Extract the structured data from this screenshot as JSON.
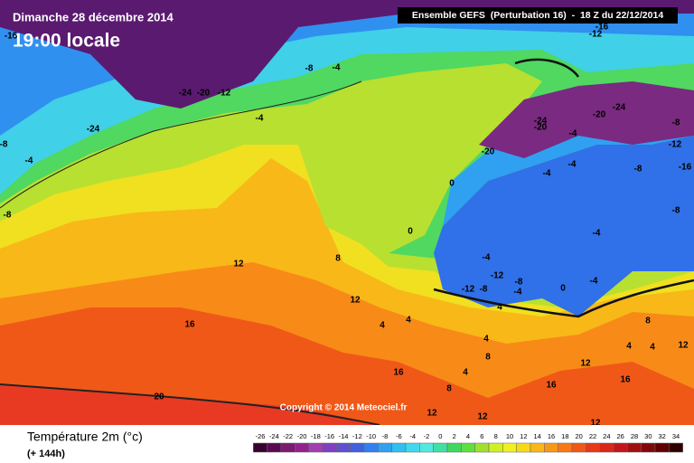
{
  "header": {
    "date": "Dimanche 28 décembre 2014",
    "time": "19:00 locale",
    "run": "Ensemble GEFS  (Perturbation 16)  -  18 Z du 22/12/2014",
    "copyright": "Copyright © 2014 Meteociel.fr"
  },
  "legend": {
    "title": "Température 2m (°c)",
    "lead": "(+ 144h)",
    "ticks": [
      -26,
      -24,
      -22,
      -20,
      -18,
      -16,
      -14,
      -12,
      -10,
      -8,
      -6,
      -4,
      -2,
      0,
      2,
      4,
      6,
      8,
      10,
      12,
      14,
      16,
      18,
      20,
      22,
      24,
      26,
      28,
      30,
      32,
      34
    ],
    "colors": [
      "#3a0030",
      "#5a0a50",
      "#7a1a70",
      "#952090",
      "#a040b0",
      "#8040c0",
      "#6050d0",
      "#4060e0",
      "#3080f0",
      "#30a0f0",
      "#30c0f0",
      "#40d8f0",
      "#50e8e0",
      "#40e0a0",
      "#40d860",
      "#60e040",
      "#a0e030",
      "#d0f020",
      "#f0f020",
      "#f8d818",
      "#f8b818",
      "#f89818",
      "#f87818",
      "#f05818",
      "#e83818",
      "#d82818",
      "#c01818",
      "#a01010",
      "#800808",
      "#600000",
      "#300000"
    ]
  },
  "contour_labels": [
    -16,
    -12,
    -16,
    -8,
    -4,
    -24,
    -20,
    -12,
    -24,
    -8,
    -4,
    -4,
    -24,
    -20,
    -24,
    -20,
    -4,
    -8,
    -12,
    -16,
    -20,
    0,
    -4,
    -4,
    -8,
    -8,
    -4,
    -4,
    0,
    -12,
    -8,
    -12,
    -8,
    -4,
    0,
    -4,
    12,
    8,
    12,
    4,
    4,
    16,
    4,
    8,
    4,
    4,
    12,
    16,
    4,
    8,
    16,
    16,
    20,
    12,
    12,
    12,
    -8,
    12,
    8,
    4
  ]
}
